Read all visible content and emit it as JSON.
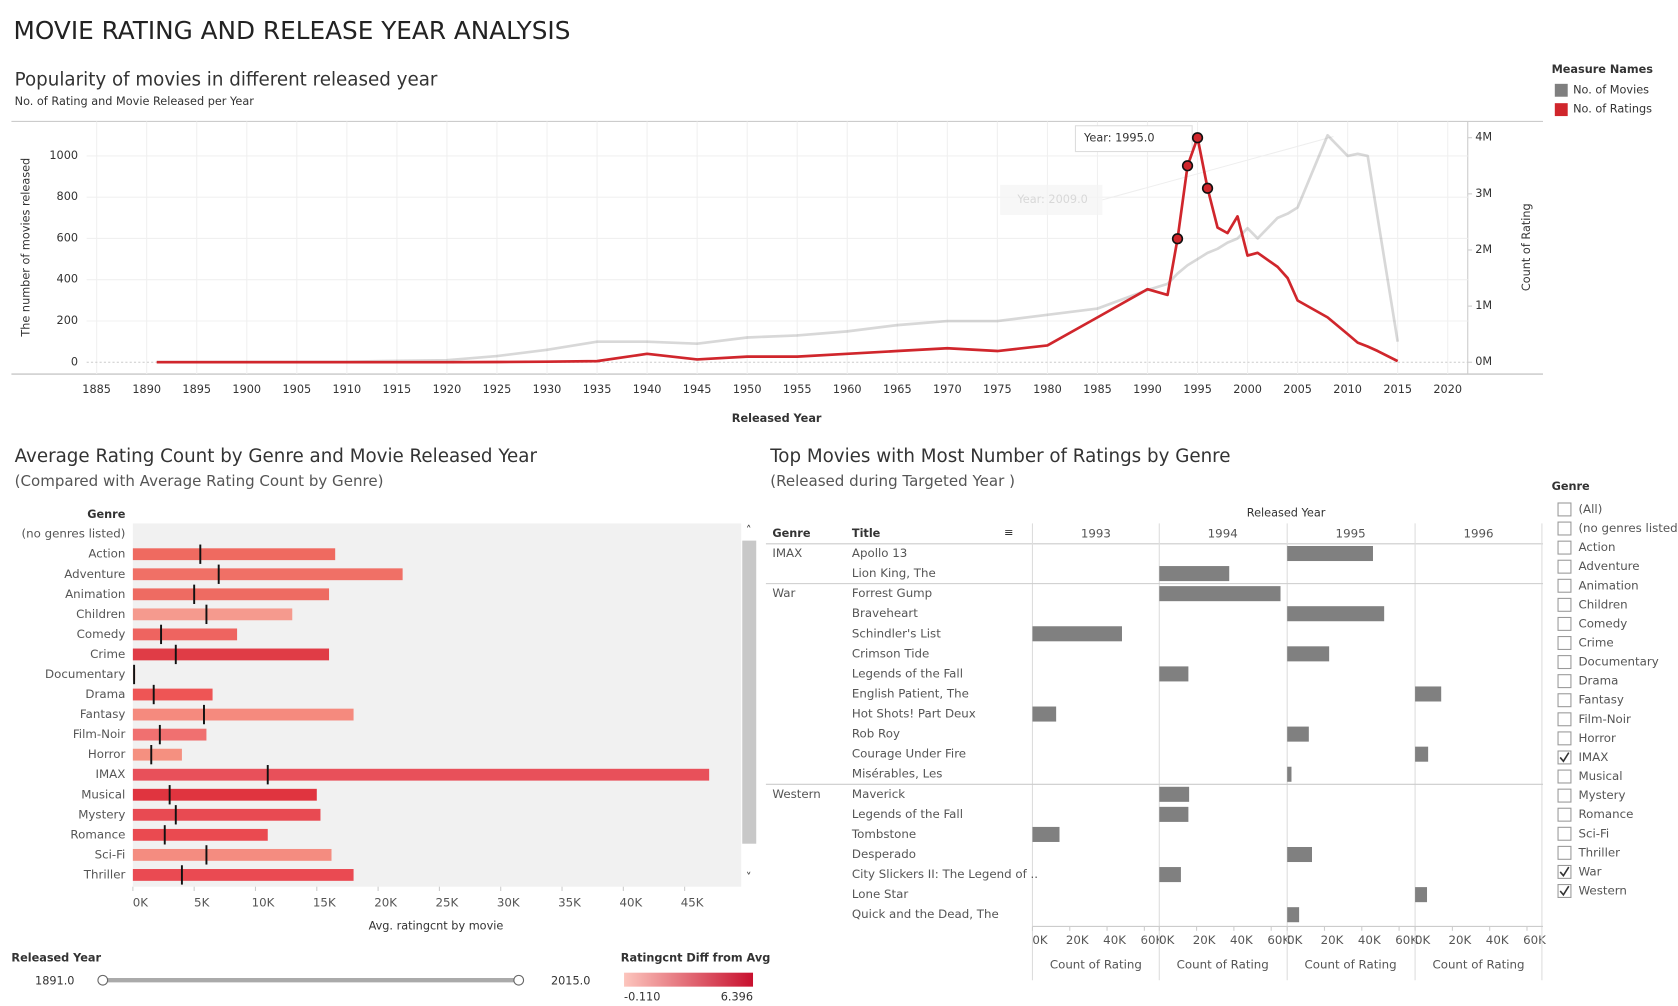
{
  "title": "MOVIE RATING AND RELEASE YEAR ANALYSIS",
  "chart_data": [
    {
      "type": "line",
      "title": "Popularity of movies in different released year",
      "subtitle": "No. of Rating and Movie Released per Year",
      "x_label": "Released Year",
      "y_label": "The number of movies released",
      "y2_label": "Count of Rating",
      "legend_title": "Measure Names",
      "x": [
        1891,
        1900,
        1910,
        1920,
        1925,
        1930,
        1935,
        1940,
        1945,
        1950,
        1955,
        1960,
        1965,
        1970,
        1975,
        1980,
        1985,
        1990,
        1992,
        1993,
        1994,
        1995,
        1996,
        1997,
        1998,
        1999,
        2000,
        2001,
        2003,
        2004,
        2005,
        2008,
        2010,
        2011,
        2012,
        2013,
        2015
      ],
      "series": [
        {
          "name": "No. of Movies",
          "color": "#7f7f7f",
          "dimmed": true,
          "values": [
            1,
            2,
            3,
            10,
            30,
            60,
            100,
            100,
            90,
            120,
            130,
            150,
            180,
            200,
            200,
            230,
            260,
            350,
            380,
            430,
            470,
            500,
            530,
            550,
            580,
            600,
            650,
            600,
            700,
            720,
            750,
            1100,
            1000,
            1010,
            1000,
            700,
            100
          ]
        },
        {
          "name": "No. of Ratings",
          "color": "#d0262c",
          "axis": "y2",
          "dimmed": false,
          "values": [
            0,
            0,
            0,
            0,
            5000,
            10000,
            20000,
            150000,
            50000,
            100000,
            100000,
            150000,
            200000,
            250000,
            200000,
            300000,
            800000,
            1300000,
            1200000,
            2200000,
            3500000,
            4000000,
            3100000,
            2400000,
            2300000,
            2600000,
            1900000,
            1950000,
            1700000,
            1500000,
            1100000,
            800000,
            500000,
            350000,
            280000,
            200000,
            20000
          ]
        }
      ],
      "highlight_years": [
        1993,
        1994,
        1995,
        1996
      ],
      "annotations": [
        "Year: 1995.0",
        "Year: 2009.0"
      ],
      "xlim": [
        1884,
        2022
      ],
      "xticks": [
        1885,
        1890,
        1895,
        1900,
        1905,
        1910,
        1915,
        1920,
        1925,
        1930,
        1935,
        1940,
        1945,
        1950,
        1955,
        1960,
        1965,
        1970,
        1975,
        1980,
        1985,
        1990,
        1995,
        2000,
        2005,
        2010,
        2015,
        2020
      ],
      "ylim": [
        -57,
        1167
      ],
      "yticks": [
        0,
        200,
        400,
        600,
        800,
        1000
      ],
      "y2lim": [
        -210000,
        4290000
      ],
      "y2ticks": [
        {
          "value": 0,
          "label": "0M"
        },
        {
          "value": 1000000,
          "label": "1M"
        },
        {
          "value": 2000000,
          "label": "2M"
        },
        {
          "value": 3000000,
          "label": "3M"
        },
        {
          "value": 4000000,
          "label": "4M"
        }
      ],
      "grid": true
    },
    {
      "type": "hbar",
      "title": "Average Rating Count by Genre and Movie Released Year",
      "subtitle": "(Compared with Average Rating Count by Genre)",
      "y_label": "Genre",
      "x_label": "Avg. ratingcnt by movie",
      "categories": [
        "(no genres listed)",
        "Action",
        "Adventure",
        "Animation",
        "Children",
        "Comedy",
        "Crime",
        "Documentary",
        "Drama",
        "Fantasy",
        "Film-Noir",
        "Horror",
        "IMAX",
        "Musical",
        "Mystery",
        "Romance",
        "Sci-Fi",
        "Thriller"
      ],
      "values": [
        null,
        16500,
        22000,
        16000,
        13000,
        8500,
        16000,
        200,
        6500,
        18000,
        6000,
        4000,
        47000,
        15000,
        15300,
        11000,
        16200,
        18000
      ],
      "reference_values": [
        null,
        5500,
        7000,
        5000,
        6000,
        2300,
        3500,
        100,
        1700,
        5800,
        2200,
        1500,
        11000,
        3000,
        3500,
        2600,
        6000,
        4000
      ],
      "colors": [
        "#f4a9a0",
        "#ef6a60",
        "#f07066",
        "#ee6b62",
        "#f59a8e",
        "#ee6460",
        "#e03c46",
        "#fbc4bb",
        "#ee5555",
        "#f58a7e",
        "#f07070",
        "#f59080",
        "#e8505a",
        "#e0343f",
        "#e84a52",
        "#ea4a50",
        "#f48c80",
        "#ea4a52"
      ],
      "xlim": [
        0,
        49700
      ],
      "xticks": [
        {
          "value": 0,
          "label": "0K"
        },
        {
          "value": 5000,
          "label": "5K"
        },
        {
          "value": 10000,
          "label": "10K"
        },
        {
          "value": 15000,
          "label": "15K"
        },
        {
          "value": 20000,
          "label": "20K"
        },
        {
          "value": 25000,
          "label": "25K"
        },
        {
          "value": 30000,
          "label": "30K"
        },
        {
          "value": 35000,
          "label": "35K"
        },
        {
          "value": 40000,
          "label": "40K"
        },
        {
          "value": 45000,
          "label": "45K"
        }
      ]
    },
    {
      "type": "table-bar",
      "title": "Top Movies with Most Number of Ratings by Genre",
      "subtitle": "(Released during Targeted Year )",
      "column_header": "Released Year",
      "row_headers": [
        "Genre",
        "Title"
      ],
      "x_label": "Count of Rating",
      "color": "#808080",
      "row_genres": [
        "IMAX",
        null,
        "War",
        null,
        null,
        null,
        null,
        null,
        null,
        null,
        null,
        null,
        "Western",
        null,
        null,
        null,
        null,
        null,
        null
      ],
      "categories": [
        "Apollo 13",
        "Lion King, The",
        "Forrest Gump",
        "Braveheart",
        "Schindler's List",
        "Crimson Tide",
        "Legends of the Fall",
        "English Patient, The",
        "Hot Shots! Part Deux",
        "Rob Roy",
        "Courage Under Fire",
        "Misérables, Les",
        "Maverick",
        "Legends of the Fall",
        "Tombstone",
        "Desperado",
        "City Slickers II: The Legend of ..",
        "Lone Star",
        "Quick and the Dead, The"
      ],
      "series": [
        {
          "name": "1993",
          "values": [
            null,
            null,
            null,
            null,
            48000,
            null,
            null,
            null,
            12700,
            null,
            null,
            null,
            null,
            null,
            14500,
            null,
            null,
            null,
            null
          ]
        },
        {
          "name": "1994",
          "values": [
            null,
            37500,
            65000,
            null,
            null,
            null,
            15600,
            null,
            null,
            null,
            null,
            null,
            16000,
            15600,
            null,
            null,
            11600,
            null,
            null
          ]
        },
        {
          "name": "1995",
          "values": [
            46000,
            null,
            null,
            52000,
            null,
            22500,
            null,
            null,
            null,
            11600,
            null,
            2300,
            null,
            null,
            null,
            13300,
            null,
            null,
            6400
          ]
        },
        {
          "name": "1996",
          "values": [
            null,
            null,
            null,
            null,
            null,
            null,
            null,
            14000,
            null,
            null,
            7000,
            null,
            null,
            null,
            null,
            null,
            null,
            6400,
            null
          ]
        }
      ],
      "xlim": [
        0,
        68000
      ],
      "xticks": [
        {
          "value": 0,
          "label": "0K"
        },
        {
          "value": 20000,
          "label": "20K"
        },
        {
          "value": 40000,
          "label": "40K"
        },
        {
          "value": 60000,
          "label": "60K"
        }
      ]
    }
  ],
  "year_slider": {
    "title": "Released Year",
    "min": "1891.0",
    "max": "2015.0"
  },
  "color_legend": {
    "title": "Ratingcnt Diff from Avg",
    "min": "-0.110",
    "max": "6.396",
    "colors": [
      "#fcc5bd",
      "#c8102e"
    ]
  },
  "genre_filter": {
    "title": "Genre",
    "options": [
      {
        "label": "(All)",
        "checked": false
      },
      {
        "label": "(no genres listed)",
        "checked": false
      },
      {
        "label": "Action",
        "checked": false
      },
      {
        "label": "Adventure",
        "checked": false
      },
      {
        "label": "Animation",
        "checked": false
      },
      {
        "label": "Children",
        "checked": false
      },
      {
        "label": "Comedy",
        "checked": false
      },
      {
        "label": "Crime",
        "checked": false
      },
      {
        "label": "Documentary",
        "checked": false
      },
      {
        "label": "Drama",
        "checked": false
      },
      {
        "label": "Fantasy",
        "checked": false
      },
      {
        "label": "Film-Noir",
        "checked": false
      },
      {
        "label": "Horror",
        "checked": false
      },
      {
        "label": "IMAX",
        "checked": true
      },
      {
        "label": "Musical",
        "checked": false
      },
      {
        "label": "Mystery",
        "checked": false
      },
      {
        "label": "Romance",
        "checked": false
      },
      {
        "label": "Sci-Fi",
        "checked": false
      },
      {
        "label": "Thriller",
        "checked": false
      },
      {
        "label": "War",
        "checked": true
      },
      {
        "label": "Western",
        "checked": true
      }
    ]
  }
}
